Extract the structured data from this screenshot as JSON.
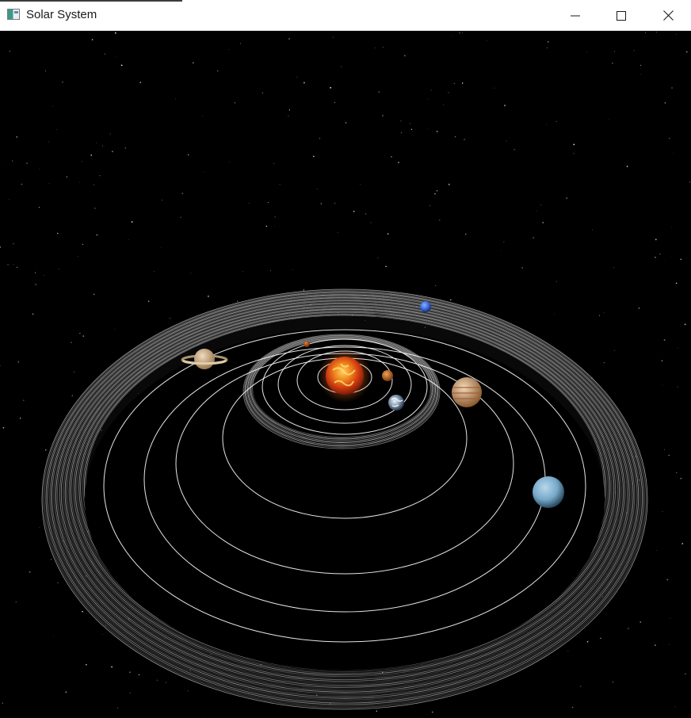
{
  "window": {
    "title": "Solar System"
  },
  "titlebar_buttons": {
    "minimize_icon": "minimize-icon",
    "maximize_icon": "maximize-icon",
    "close_icon": "close-icon"
  },
  "scene": {
    "background_color": "#000000",
    "orbit_color": "#ffffff",
    "belt_color": "#9a9a9a",
    "bodies": [
      {
        "id": "sun",
        "icon": "sun-icon",
        "color": "#e8501c"
      },
      {
        "id": "mercury",
        "icon": "mercury-icon",
        "color": "#b8642c"
      },
      {
        "id": "venus",
        "icon": "venus-icon",
        "color": "#c9702e"
      },
      {
        "id": "earth",
        "icon": "earth-icon",
        "color": "#b8c8d8"
      },
      {
        "id": "jupiter",
        "icon": "jupiter-icon",
        "color": "#d8a070"
      },
      {
        "id": "saturn",
        "icon": "saturn-icon",
        "color": "#d8b890"
      },
      {
        "id": "uranus",
        "icon": "uranus-icon",
        "color": "#7fb0d0"
      },
      {
        "id": "neptune",
        "icon": "neptune-icon",
        "color": "#3a6ad8"
      }
    ]
  }
}
